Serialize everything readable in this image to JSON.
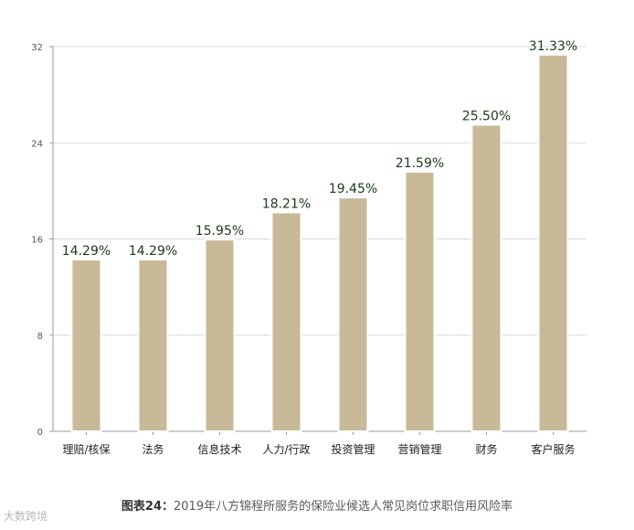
{
  "chart_data": {
    "type": "bar",
    "categories": [
      "理赔/核保",
      "法务",
      "信息技术",
      "人力/行政",
      "投资管理",
      "营销管理",
      "财务",
      "客户服务"
    ],
    "values": [
      14.29,
      14.29,
      15.95,
      18.21,
      19.45,
      21.59,
      25.5,
      31.33
    ],
    "value_labels": [
      "14.29%",
      "14.29%",
      "15.95%",
      "18.21%",
      "19.45%",
      "21.59%",
      "25.50%",
      "31.33%"
    ],
    "ylim": [
      0,
      32
    ],
    "yticks": [
      0,
      8,
      16,
      24,
      32
    ],
    "grid": true,
    "bar_color": "#c8b998",
    "bar_edge_color": "#ffffff",
    "grid_color": "#d9d9d9",
    "label_color": "#1a3a1a"
  },
  "caption": {
    "label": "图表24：",
    "text": "2019年八方锦程所服务的保险业候选人常见岗位求职信用风险率"
  },
  "watermark": "大数跨境"
}
